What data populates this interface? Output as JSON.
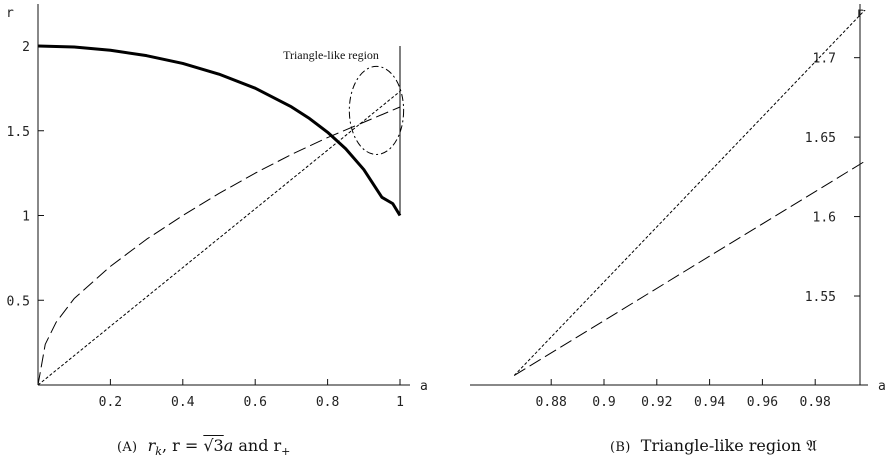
{
  "chart_data": [
    {
      "id": "A",
      "type": "line",
      "caption": {
        "tag": "(A)",
        "text_a": "r",
        "sub_k": "k",
        "text_b": ", r = ",
        "sqrt": "√3",
        "text_c": "a",
        "text_d": " and r",
        "sub_plus": "+"
      },
      "xlabel": "a",
      "ylabel": "r",
      "xlim": [
        0,
        1
      ],
      "ylim": [
        0,
        2
      ],
      "xticks": [
        0.2,
        0.4,
        0.6,
        0.8,
        1.0
      ],
      "xtick_labels": [
        "0.2",
        "0.4",
        "0.6",
        "0.8",
        "1"
      ],
      "yticks": [
        0.5,
        1.0,
        1.5,
        2.0
      ],
      "ytick_labels": [
        "0.5",
        "1",
        "1.5",
        "2"
      ],
      "annotation": "Triangle-like region",
      "series": [
        {
          "style": "solid-thick",
          "x": [
            0,
            0.1,
            0.2,
            0.3,
            0.4,
            0.5,
            0.6,
            0.7,
            0.75,
            0.8,
            0.85,
            0.9,
            0.95,
            0.98,
            1.0
          ],
          "y": [
            2.0,
            1.994,
            1.975,
            1.943,
            1.897,
            1.834,
            1.751,
            1.641,
            1.572,
            1.491,
            1.394,
            1.271,
            1.107,
            1.07,
            1.0
          ]
        },
        {
          "style": "long-dash",
          "x": [
            0,
            0.02,
            0.05,
            0.1,
            0.2,
            0.3,
            0.4,
            0.5,
            0.6,
            0.7,
            0.8,
            0.9,
            1.0
          ],
          "y": [
            0,
            0.24,
            0.37,
            0.51,
            0.7,
            0.86,
            1.0,
            1.13,
            1.25,
            1.36,
            1.46,
            1.55,
            1.64
          ]
        },
        {
          "style": "short-dash",
          "x": [
            0,
            1.0
          ],
          "y": [
            0,
            1.732
          ]
        },
        {
          "style": "thin-solid-vertical",
          "x": [
            1.0,
            1.0
          ],
          "y": [
            1.0,
            2.0
          ]
        }
      ],
      "region_ellipse": {
        "cx": 0.935,
        "cy": 1.62,
        "rx": 0.075,
        "ry": 0.26
      }
    },
    {
      "id": "B",
      "type": "line",
      "caption": {
        "tag": "(B)",
        "text": "Triangle-like region ",
        "symbol": "𝔄"
      },
      "xlabel": "a",
      "ylabel": "r",
      "xlim": [
        0.8625,
        1.0
      ],
      "ylim": [
        1.494,
        1.73
      ],
      "xticks": [
        0.88,
        0.9,
        0.92,
        0.94,
        0.96,
        0.98
      ],
      "xtick_labels": [
        "0.88",
        "0.9",
        "0.92",
        "0.94",
        "0.96",
        "0.98"
      ],
      "yticks": [
        1.55,
        1.6,
        1.65,
        1.7
      ],
      "ytick_labels": [
        "1.55",
        "1.6",
        "1.65",
        "1.7"
      ],
      "series": [
        {
          "style": "short-dash",
          "x": [
            0.866,
            1.0
          ],
          "y": [
            1.5,
            1.732
          ]
        },
        {
          "style": "long-dash",
          "x": [
            0.866,
            1.0
          ],
          "y": [
            1.5,
            1.636
          ]
        }
      ]
    }
  ]
}
